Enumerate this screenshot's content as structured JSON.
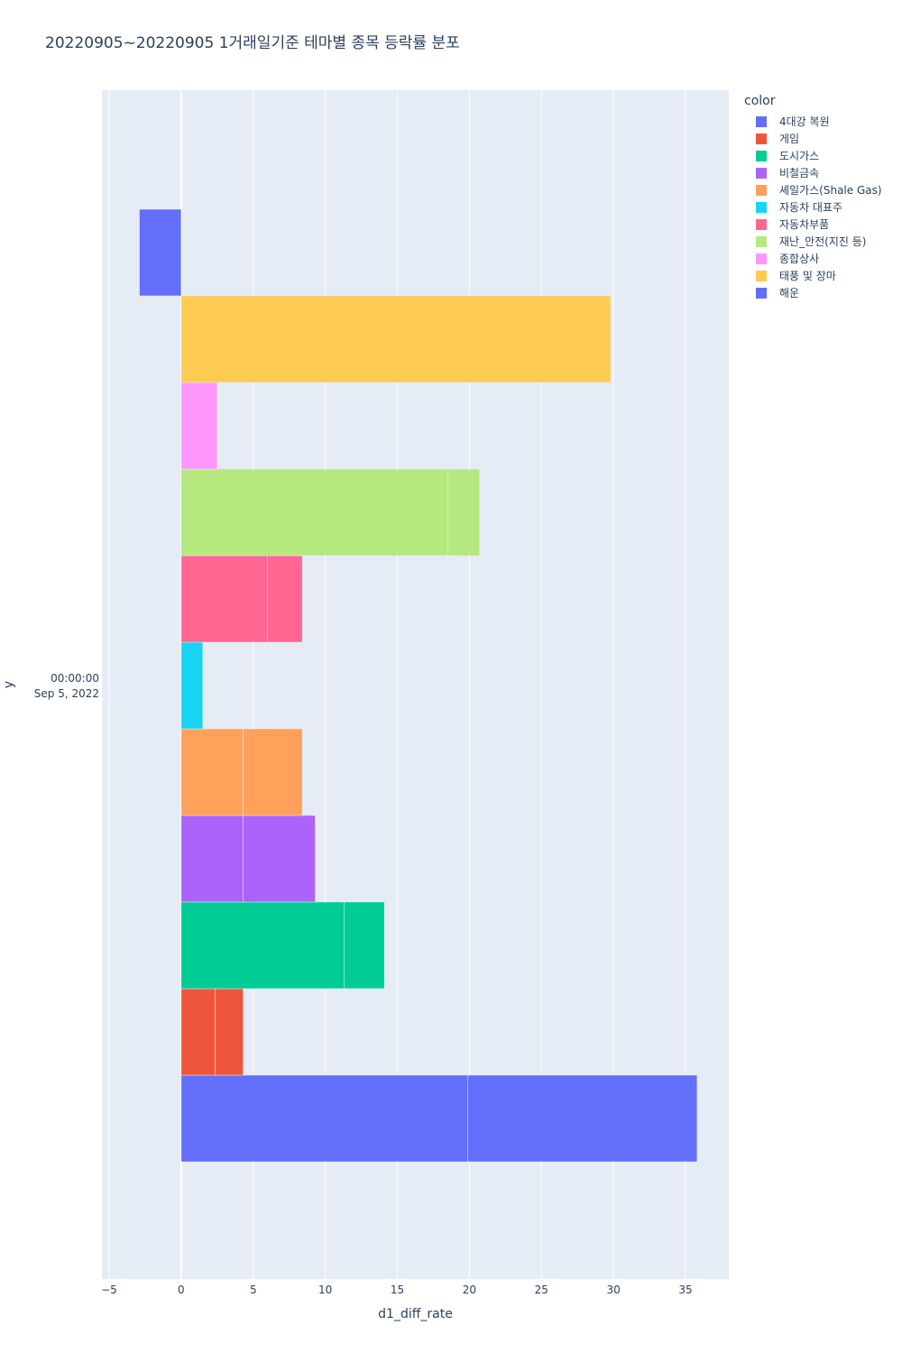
{
  "chart_data": {
    "type": "bar",
    "orientation": "horizontal",
    "barmode": "relative",
    "title": "20220905~20220905 1거래일기준 테마별 종목 등락률 분포",
    "xlabel": "d1_diff_rate",
    "ylabel": "y",
    "xlim": [
      -5.5,
      38
    ],
    "x_ticks": [
      -5,
      0,
      5,
      10,
      15,
      20,
      25,
      30,
      35
    ],
    "x_tick_labels": [
      "−5",
      "0",
      "5",
      "10",
      "15",
      "20",
      "25",
      "30",
      "35"
    ],
    "y_tick_label_line1": "00:00:00",
    "y_tick_label_line2": "Sep 5, 2022",
    "grid": true,
    "legend_title": "color",
    "legend_position": "top-right",
    "series": [
      {
        "name": "4대강 복원",
        "color": "#636efa",
        "values": [
          19.9,
          15.9
        ]
      },
      {
        "name": "게임",
        "color": "#EF553B",
        "values": [
          2.35,
          1.95
        ]
      },
      {
        "name": "도시가스",
        "color": "#00cc96",
        "values": [
          11.3,
          2.8
        ]
      },
      {
        "name": "비철금속",
        "color": "#ab63fa",
        "values": [
          4.3,
          5.0
        ]
      },
      {
        "name": "셰일가스(Shale Gas)",
        "color": "#FFA15A",
        "values": [
          4.3,
          4.1
        ]
      },
      {
        "name": "자동차 대표주",
        "color": "#19d3f3",
        "values": [
          1.5
        ]
      },
      {
        "name": "자동차부품",
        "color": "#FF6692",
        "values": [
          6.0,
          2.4
        ]
      },
      {
        "name": "재난_안전(지진 등)",
        "color": "#B6E880",
        "values": [
          18.5,
          2.2
        ]
      },
      {
        "name": "종합상사",
        "color": "#FF97FF",
        "values": [
          2.5
        ]
      },
      {
        "name": "태풍 및 장마",
        "color": "#FECB52",
        "values": [
          29.8
        ]
      },
      {
        "name": "해운",
        "color": "#636efa",
        "values": [
          -2.9
        ]
      }
    ]
  }
}
